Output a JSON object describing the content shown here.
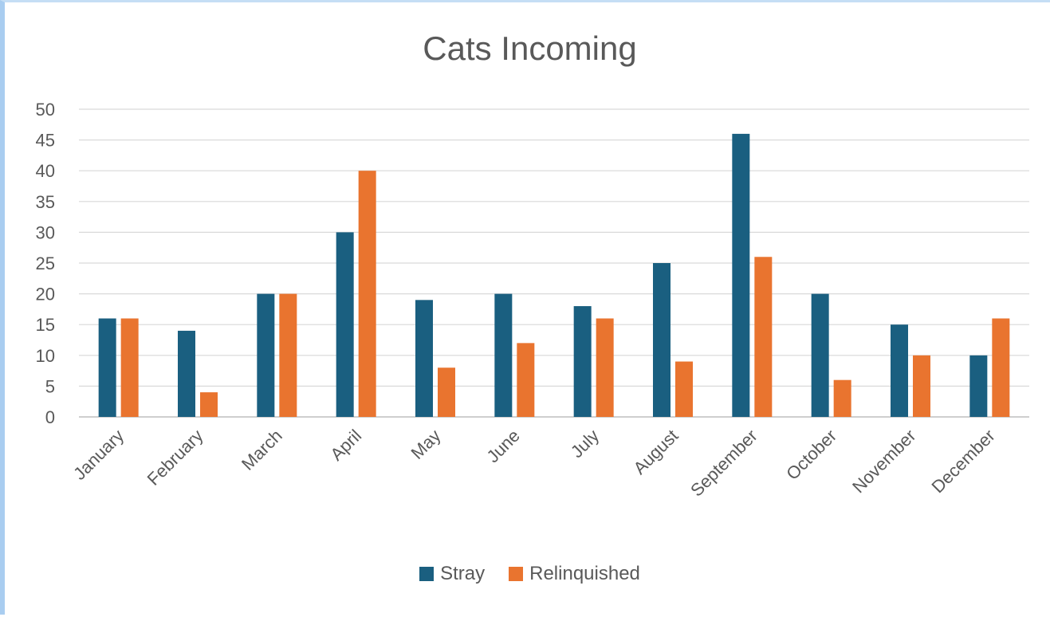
{
  "chart_data": {
    "type": "bar",
    "title": "Cats Incoming",
    "xlabel": "",
    "ylabel": "",
    "categories": [
      "January",
      "February",
      "March",
      "April",
      "May",
      "June",
      "July",
      "August",
      "September",
      "October",
      "November",
      "December"
    ],
    "series": [
      {
        "name": "Stray",
        "color": "#1a5f80",
        "values": [
          16,
          14,
          20,
          30,
          19,
          20,
          18,
          25,
          46,
          20,
          15,
          10
        ]
      },
      {
        "name": "Relinquished",
        "color": "#e9742f",
        "values": [
          16,
          4,
          20,
          40,
          8,
          12,
          16,
          9,
          26,
          6,
          10,
          16
        ]
      }
    ],
    "ylim": [
      0,
      50
    ],
    "yticks": [
      0,
      5,
      10,
      15,
      20,
      25,
      30,
      35,
      40,
      45,
      50
    ],
    "grid": true,
    "legend_position": "bottom"
  }
}
